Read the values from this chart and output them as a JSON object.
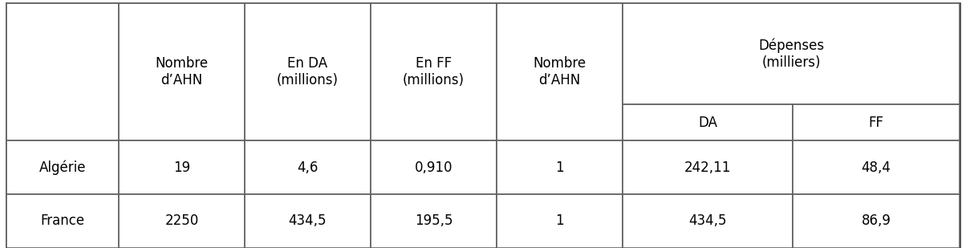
{
  "rows": [
    [
      "Algérie",
      "19",
      "4,6",
      "0,910",
      "1",
      "242,11",
      "48,4"
    ],
    [
      "France",
      "2250",
      "434,5",
      "195,5",
      "1",
      "434,5",
      "86,9"
    ]
  ],
  "header_main": [
    "Nombre\nd’AHN",
    "En DA\n(millions)",
    "En FF\n(millions)",
    "Nombre\nd’AHN",
    "Dépenses\n(milliers)"
  ],
  "header_sub": [
    "DA",
    "FF"
  ],
  "background": "#ffffff",
  "line_color": "#606060",
  "text_color": "#000000",
  "font_size": 12,
  "font_size_header": 12
}
